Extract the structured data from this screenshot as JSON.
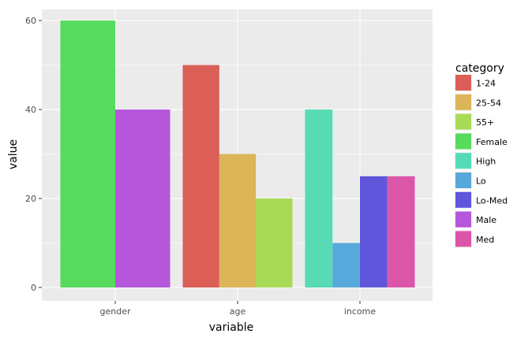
{
  "chart_data": {
    "type": "bar",
    "layout": "dodge",
    "xlabel": "variable",
    "ylabel": "value",
    "ylim": [
      0,
      62.5
    ],
    "yticks": [
      0,
      20,
      40,
      60
    ],
    "grid": true,
    "legend_position": "right",
    "legend_title": "category",
    "categories": [
      "gender",
      "age",
      "income"
    ],
    "legend": [
      {
        "name": "1-24",
        "color": "#DB5F57"
      },
      {
        "name": "25-54",
        "color": "#DBB557"
      },
      {
        "name": "55+",
        "color": "#A9DA56"
      },
      {
        "name": "Female",
        "color": "#56DB5F"
      },
      {
        "name": "High",
        "color": "#56DBB5"
      },
      {
        "name": "Lo",
        "color": "#57A9DB"
      },
      {
        "name": "Lo-Med",
        "color": "#5F56DB"
      },
      {
        "name": "Male",
        "color": "#B556DB"
      },
      {
        "name": "Med",
        "color": "#DB56A9"
      }
    ],
    "groups": [
      {
        "variable": "gender",
        "bars": [
          {
            "category": "Female",
            "value": 60
          },
          {
            "category": "Male",
            "value": 40
          }
        ]
      },
      {
        "variable": "age",
        "bars": [
          {
            "category": "1-24",
            "value": 50
          },
          {
            "category": "25-54",
            "value": 30
          },
          {
            "category": "55+",
            "value": 20
          }
        ]
      },
      {
        "variable": "income",
        "bars": [
          {
            "category": "High",
            "value": 40
          },
          {
            "category": "Lo",
            "value": 10
          },
          {
            "category": "Lo-Med",
            "value": 25
          },
          {
            "category": "Med",
            "value": 25
          }
        ]
      }
    ]
  }
}
